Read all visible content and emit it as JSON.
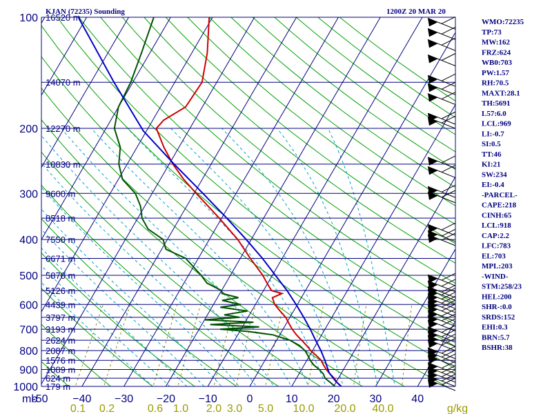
{
  "header": {
    "station": "KJAN (72235) Sounding",
    "time": "1200Z 20 MAR 20"
  },
  "chart_data": {
    "type": "skew-t",
    "pressure_ticks": [
      100,
      200,
      300,
      400,
      500,
      600,
      700,
      800,
      900,
      1000
    ],
    "temp_ticks": [
      "-50",
      "−40",
      "−30",
      "−20",
      "−10",
      "0",
      "10",
      "20",
      "30",
      "40"
    ],
    "x_unit_label": "mb",
    "xlim_c": [
      -50,
      50
    ],
    "ylim_mb": [
      1000,
      100
    ],
    "height_levels": [
      {
        "p": 100,
        "label": "16520 m"
      },
      {
        "p": 150,
        "label": "14070 m"
      },
      {
        "p": 200,
        "label": "12270 m"
      },
      {
        "p": 250,
        "label": "10830 m"
      },
      {
        "p": 300,
        "label": "9600 m"
      },
      {
        "p": 350,
        "label": "8518 m"
      },
      {
        "p": 400,
        "label": "7550 m"
      },
      {
        "p": 450,
        "label": "6671 m"
      },
      {
        "p": 500,
        "label": "5870 m"
      },
      {
        "p": 550,
        "label": "5126 m"
      },
      {
        "p": 600,
        "label": "4439 m"
      },
      {
        "p": 650,
        "label": "3797 m"
      },
      {
        "p": 700,
        "label": "3193 m"
      },
      {
        "p": 750,
        "label": "2624 m"
      },
      {
        "p": 800,
        "label": "2087 m"
      },
      {
        "p": 850,
        "label": "1576 m"
      },
      {
        "p": 900,
        "label": "1089 m"
      },
      {
        "p": 950,
        "label": "624 m"
      },
      {
        "p": 1000,
        "label": "179 m"
      }
    ],
    "mixing_ratio_labels": [
      "0.1",
      "0.2",
      "0.6",
      "1.0",
      "2.0",
      "3.0",
      "5.0",
      "10.0",
      "20.0",
      "40.0",
      "g/kg"
    ],
    "mixing_ratio_values": [
      0.1,
      0.2,
      0.6,
      1.0,
      2.0,
      3.0,
      5.0,
      10.0,
      20.0,
      40.0
    ],
    "series": [
      {
        "name": "temperature",
        "points": [
          [
            1013,
            22.4
          ],
          [
            1000,
            21.8
          ],
          [
            975,
            20.2
          ],
          [
            950,
            19.0
          ],
          [
            925,
            17.4
          ],
          [
            900,
            15.9
          ],
          [
            875,
            14.6
          ],
          [
            850,
            13.4
          ],
          [
            825,
            11.6
          ],
          [
            800,
            9.6
          ],
          [
            775,
            7.9
          ],
          [
            750,
            6.0
          ],
          [
            725,
            4.0
          ],
          [
            700,
            2.2
          ],
          [
            675,
            0.6
          ],
          [
            650,
            -1.0
          ],
          [
            625,
            -3.2
          ],
          [
            600,
            -5.4
          ],
          [
            575,
            -6.9
          ],
          [
            560,
            -5.2
          ],
          [
            550,
            -8.1
          ],
          [
            525,
            -10.2
          ],
          [
            500,
            -12.3
          ],
          [
            450,
            -17.6
          ],
          [
            400,
            -23.2
          ],
          [
            350,
            -30.6
          ],
          [
            300,
            -39.5
          ],
          [
            275,
            -44.4
          ],
          [
            250,
            -49.1
          ],
          [
            225,
            -53.6
          ],
          [
            200,
            -58.0
          ],
          [
            190,
            -57.4
          ],
          [
            175,
            -54.0
          ],
          [
            150,
            -53.5
          ],
          [
            125,
            -56.3
          ],
          [
            100,
            -60.8
          ]
        ]
      },
      {
        "name": "dewpoint",
        "points": [
          [
            1013,
            21.0
          ],
          [
            1000,
            20.3
          ],
          [
            975,
            18.6
          ],
          [
            950,
            16.8
          ],
          [
            925,
            15.8
          ],
          [
            900,
            14.2
          ],
          [
            875,
            12.3
          ],
          [
            850,
            10.8
          ],
          [
            825,
            9.6
          ],
          [
            800,
            8.2
          ],
          [
            775,
            6.2
          ],
          [
            750,
            3.2
          ],
          [
            725,
            -1.6
          ],
          [
            710,
            -8.0
          ],
          [
            700,
            -15.0
          ],
          [
            690,
            -6.0
          ],
          [
            680,
            -18.0
          ],
          [
            670,
            -8.0
          ],
          [
            660,
            -20.0
          ],
          [
            650,
            -12.0
          ],
          [
            640,
            -16.0
          ],
          [
            625,
            -11.0
          ],
          [
            610,
            -18.0
          ],
          [
            600,
            -13.5
          ],
          [
            585,
            -18.5
          ],
          [
            575,
            -15.0
          ],
          [
            560,
            -19.5
          ],
          [
            550,
            -20.0
          ],
          [
            525,
            -24.5
          ],
          [
            500,
            -27.0
          ],
          [
            450,
            -33.0
          ],
          [
            425,
            -39.0
          ],
          [
            400,
            -41.0
          ],
          [
            375,
            -46.0
          ],
          [
            350,
            -49.0
          ],
          [
            325,
            -51.0
          ],
          [
            300,
            -54.0
          ],
          [
            275,
            -59.0
          ],
          [
            250,
            -62.0
          ],
          [
            225,
            -64.0
          ],
          [
            200,
            -68.0
          ],
          [
            175,
            -70.0
          ],
          [
            150,
            -70.5
          ],
          [
            125,
            -72.0
          ],
          [
            100,
            -74.0
          ]
        ]
      },
      {
        "name": "parcel",
        "points": [
          [
            1013,
            22.8
          ],
          [
            1000,
            21.8
          ],
          [
            969,
            19.8
          ],
          [
            918,
            17.0
          ],
          [
            850,
            14.3
          ],
          [
            800,
            12.0
          ],
          [
            750,
            9.3
          ],
          [
            700,
            6.5
          ],
          [
            650,
            3.3
          ],
          [
            600,
            -0.3
          ],
          [
            550,
            -4.4
          ],
          [
            500,
            -9.3
          ],
          [
            450,
            -14.7
          ],
          [
            400,
            -21.2
          ],
          [
            350,
            -28.8
          ],
          [
            300,
            -37.9
          ],
          [
            250,
            -48.8
          ],
          [
            203,
            -60.8
          ],
          [
            150,
            -74.5
          ],
          [
            100,
            -92.0
          ]
        ]
      }
    ],
    "wind_barbs_mb": [
      105,
      112,
      120,
      132,
      150,
      158,
      168,
      190,
      195,
      250,
      265,
      300,
      310,
      380,
      395,
      405,
      520,
      540,
      560,
      570,
      585,
      600,
      615,
      630,
      650,
      670,
      690,
      720,
      740,
      760,
      780,
      820,
      840,
      860,
      900,
      925,
      950,
      975,
      1000
    ],
    "colors": {
      "isobar": "#000080",
      "isotherm": "#000080",
      "dry_adiabat": "#00a000",
      "moist_adiabat": "#00a0c8",
      "mixing_ratio": "#8a8a00",
      "temperature": "#cc0000",
      "dewpoint": "#005000",
      "parcel": "#0000c8",
      "barb": "#000000"
    }
  },
  "indices": [
    "WMO:72235",
    "TP:73",
    "MW:162",
    "FRZ:624",
    "WB0:703",
    "PW:1.57",
    "RH:70.5",
    "MAXT:28.1",
    "TH:5691",
    "L57:6.0",
    "LCL:969",
    "LI:-0.7",
    "SI:0.5",
    "TT:46",
    "KI:21",
    "SW:234",
    "EI:-0.4",
    "-PARCEL-",
    "CAPE:218",
    "CINH:65",
    "LCL:918",
    "CAP:2.2",
    "LFC:783",
    "EL:703",
    "MPL:203",
    "-WIND-",
    "STM:258/23",
    "HEL:200",
    "SHR-:0.0",
    "SRDS:152",
    "EHI:0.3",
    "BRN:5.7",
    "BSHR:38"
  ]
}
